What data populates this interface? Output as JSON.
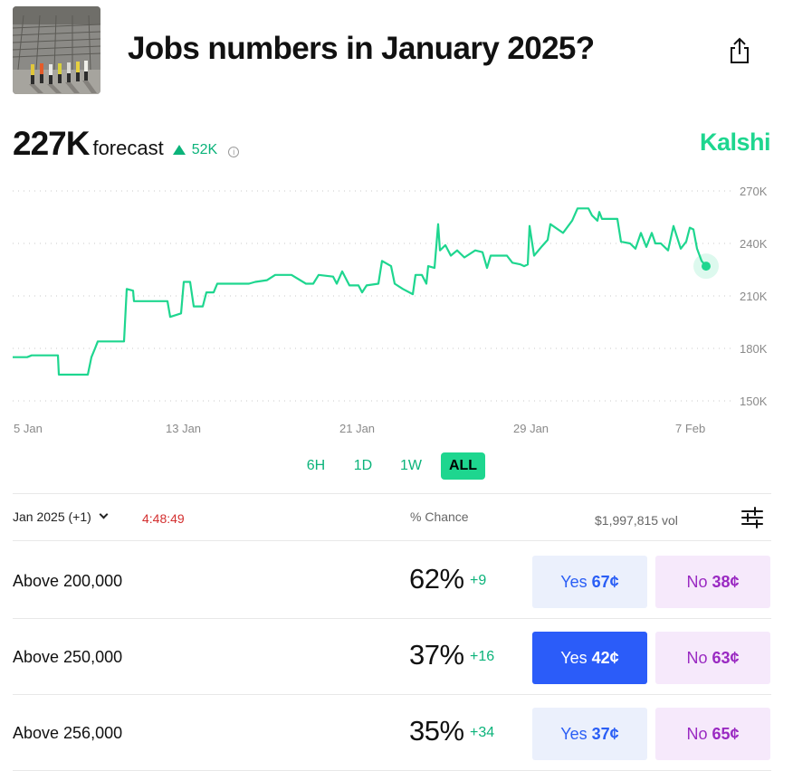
{
  "header": {
    "title": "Jobs numbers in January 2025?"
  },
  "forecast": {
    "value": "227K",
    "label": "forecast",
    "delta": "52K",
    "brand": "Kalshi"
  },
  "chart_data": {
    "type": "line",
    "x_ticks": [
      "5 Jan",
      "13 Jan",
      "21 Jan",
      "29 Jan",
      "7 Feb"
    ],
    "y_ticks": [
      "270K",
      "240K",
      "210K",
      "180K",
      "150K"
    ],
    "ylim": [
      150000,
      270000
    ],
    "grid": true,
    "color": "#1ed68f",
    "series": [
      {
        "values": [
          [
            14,
            175000
          ],
          [
            30,
            175000
          ],
          [
            35,
            176000
          ],
          [
            64,
            176000
          ],
          [
            65,
            165000
          ],
          [
            97,
            165000
          ],
          [
            101,
            175000
          ],
          [
            105,
            180000
          ],
          [
            108,
            184000
          ],
          [
            137,
            184000
          ],
          [
            140,
            214000
          ],
          [
            147,
            213000
          ],
          [
            148,
            207000
          ],
          [
            170,
            207000
          ],
          [
            185,
            207000
          ],
          [
            188,
            198000
          ],
          [
            200,
            200000
          ],
          [
            203,
            218000
          ],
          [
            210,
            218000
          ],
          [
            214,
            204000
          ],
          [
            224,
            204000
          ],
          [
            228,
            212000
          ],
          [
            236,
            212000
          ],
          [
            240,
            217000
          ],
          [
            260,
            217000
          ],
          [
            275,
            217000
          ],
          [
            282,
            218000
          ],
          [
            295,
            219000
          ],
          [
            304,
            222000
          ],
          [
            322,
            222000
          ],
          [
            338,
            217000
          ],
          [
            346,
            217000
          ],
          [
            352,
            222000
          ],
          [
            368,
            221000
          ],
          [
            372,
            217000
          ],
          [
            378,
            224000
          ],
          [
            386,
            216000
          ],
          [
            396,
            216000
          ],
          [
            400,
            212000
          ],
          [
            405,
            216000
          ],
          [
            418,
            217000
          ],
          [
            422,
            230000
          ],
          [
            432,
            227000
          ],
          [
            436,
            217000
          ],
          [
            445,
            214000
          ],
          [
            456,
            211000
          ],
          [
            459,
            222000
          ],
          [
            466,
            222000
          ],
          [
            471,
            217000
          ],
          [
            473,
            227000
          ],
          [
            480,
            226000
          ],
          [
            484,
            251000
          ],
          [
            486,
            236000
          ],
          [
            492,
            239000
          ],
          [
            498,
            233000
          ],
          [
            505,
            236000
          ],
          [
            513,
            232000
          ],
          [
            525,
            236000
          ],
          [
            533,
            235000
          ],
          [
            538,
            226000
          ],
          [
            542,
            233000
          ],
          [
            560,
            233000
          ],
          [
            566,
            229000
          ],
          [
            575,
            228000
          ],
          [
            579,
            227000
          ],
          [
            583,
            228000
          ],
          [
            585,
            250000
          ],
          [
            590,
            233000
          ],
          [
            598,
            238000
          ],
          [
            605,
            242000
          ],
          [
            608,
            251000
          ],
          [
            622,
            246000
          ],
          [
            632,
            253000
          ],
          [
            638,
            260000
          ],
          [
            650,
            260000
          ],
          [
            654,
            256000
          ],
          [
            660,
            253000
          ],
          [
            662,
            258000
          ],
          [
            665,
            254000
          ],
          [
            682,
            254000
          ],
          [
            686,
            241000
          ],
          [
            696,
            240000
          ],
          [
            702,
            237000
          ],
          [
            708,
            246000
          ],
          [
            714,
            238000
          ],
          [
            720,
            246000
          ],
          [
            724,
            240000
          ],
          [
            730,
            240000
          ],
          [
            738,
            236000
          ],
          [
            744,
            250000
          ],
          [
            752,
            237000
          ],
          [
            758,
            241000
          ],
          [
            762,
            249000
          ],
          [
            766,
            248000
          ],
          [
            770,
            237000
          ],
          [
            775,
            230000
          ],
          [
            780,
            227000
          ]
        ]
      }
    ]
  },
  "ranges": [
    "6H",
    "1D",
    "1W",
    "ALL"
  ],
  "market_header": {
    "select": "Jan 2025 (+1)",
    "timer": "4:48:49",
    "chance_label": "% Chance",
    "volume": "$1,997,815 vol"
  },
  "markets": [
    {
      "label": "Above 200,000",
      "pct": "62%",
      "change": "+9",
      "yes_text": "Yes",
      "yes_price": "67¢",
      "no_text": "No",
      "no_price": "38¢"
    },
    {
      "label": "Above 250,000",
      "pct": "37%",
      "change": "+16",
      "yes_text": "Yes",
      "yes_price": "42¢",
      "no_text": "No",
      "no_price": "63¢"
    },
    {
      "label": "Above 256,000",
      "pct": "35%",
      "change": "+34",
      "yes_text": "Yes",
      "yes_price": "37¢",
      "no_text": "No",
      "no_price": "65¢"
    }
  ],
  "icons": {
    "share": "share-icon",
    "info": "info-icon",
    "filter": "sliders-icon",
    "chevron": "chevron-down-icon"
  },
  "colors": {
    "accent": "#1ed68f",
    "up": "#0bb37a",
    "yes": "#2b5cf9",
    "no": "#9a2ac2",
    "timer": "#d32f2f"
  }
}
